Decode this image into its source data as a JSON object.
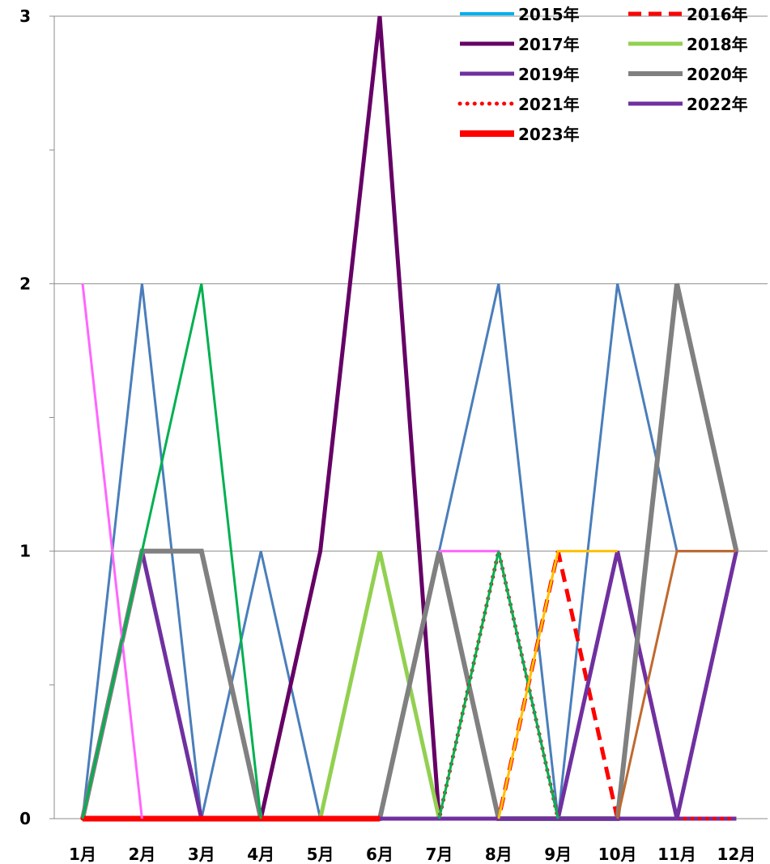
{
  "chart_data": {
    "type": "line",
    "categories": [
      "1月",
      "2月",
      "3月",
      "4月",
      "5月",
      "6月",
      "7月",
      "8月",
      "9月",
      "10月",
      "11月",
      "12月"
    ],
    "y_ticks": [
      "0",
      "1",
      "2",
      "3"
    ],
    "ylim": [
      0,
      3
    ],
    "grid": true,
    "legend_placement": "top-right",
    "series": [
      {
        "name": "2015年",
        "color": "#4A7EBB",
        "legend_color": "#00B0F0",
        "dash": "solid",
        "width": 3,
        "legend_width": 4,
        "values": [
          0,
          2,
          0,
          1,
          0,
          0,
          1,
          2,
          0,
          2,
          1,
          1
        ]
      },
      {
        "name": "2016年",
        "color": "#FF0000",
        "dash": "dashed",
        "width": 5,
        "legend_width": 5,
        "values": [
          0,
          0,
          0,
          0,
          0,
          0,
          0,
          0,
          1,
          0,
          0,
          0
        ]
      },
      {
        "name": "2017年",
        "color": "#660066",
        "dash": "solid",
        "width": 5,
        "legend_width": 5,
        "values": [
          0,
          0,
          0,
          0,
          1,
          3,
          0,
          0,
          0,
          0,
          0,
          0
        ]
      },
      {
        "name": "2018年",
        "color": "#92D050",
        "dash": "solid",
        "width": 5,
        "legend_width": 5,
        "values": [
          0,
          0,
          0,
          0,
          0,
          1,
          0,
          0,
          0,
          0,
          0,
          0
        ]
      },
      {
        "name": "2019年",
        "color": "#7030A0",
        "dash": "solid",
        "width": 5,
        "legend_width": 5,
        "values": [
          0,
          1,
          0,
          0,
          0,
          0,
          0,
          0,
          0,
          1,
          0,
          0
        ]
      },
      {
        "name": "2020年",
        "color": "#808080",
        "dash": "solid",
        "width": 6,
        "legend_width": 6,
        "values": [
          0,
          1,
          1,
          0,
          0,
          0,
          1,
          0,
          0,
          0,
          2,
          1
        ]
      },
      {
        "name": "2021年",
        "color": "#FF0000",
        "dash": "dotted",
        "width": 5,
        "legend_width": 5,
        "values": [
          0,
          0,
          0,
          0,
          0,
          0,
          0,
          1,
          0,
          0,
          0,
          0
        ]
      },
      {
        "name": "2022年",
        "color": "#7030A0",
        "dash": "solid",
        "width": 5,
        "legend_width": 5,
        "values": [
          0,
          0,
          0,
          0,
          0,
          0,
          0,
          0,
          0,
          0,
          0,
          1
        ]
      },
      {
        "name": "2023年",
        "color": "#FF0000",
        "dash": "solid",
        "width": 7,
        "legend_width": 8,
        "values": [
          0,
          0,
          0,
          0,
          0,
          0,
          null,
          null,
          null,
          null,
          null,
          null
        ]
      },
      {
        "name": "",
        "color": "#FF66FF",
        "dash": "solid",
        "width": 3,
        "legend": false,
        "values": [
          2,
          0,
          null,
          null,
          null,
          null,
          1,
          1,
          0,
          null,
          null,
          null
        ]
      },
      {
        "name": "",
        "color": "#00B050",
        "dash": "solid",
        "width": 3,
        "legend": false,
        "values": [
          0,
          1,
          2,
          0,
          null,
          null,
          0,
          1,
          0,
          null,
          null,
          null
        ]
      },
      {
        "name": "",
        "color": "#FFC000",
        "dash": "solid",
        "width": 3,
        "legend": false,
        "values": [
          null,
          null,
          null,
          null,
          null,
          null,
          null,
          0,
          1,
          1,
          null,
          null
        ]
      },
      {
        "name": "",
        "color": "#C0692F",
        "dash": "solid",
        "width": 3,
        "legend": false,
        "values": [
          null,
          null,
          null,
          null,
          null,
          null,
          null,
          null,
          null,
          0,
          1,
          1
        ]
      }
    ]
  }
}
